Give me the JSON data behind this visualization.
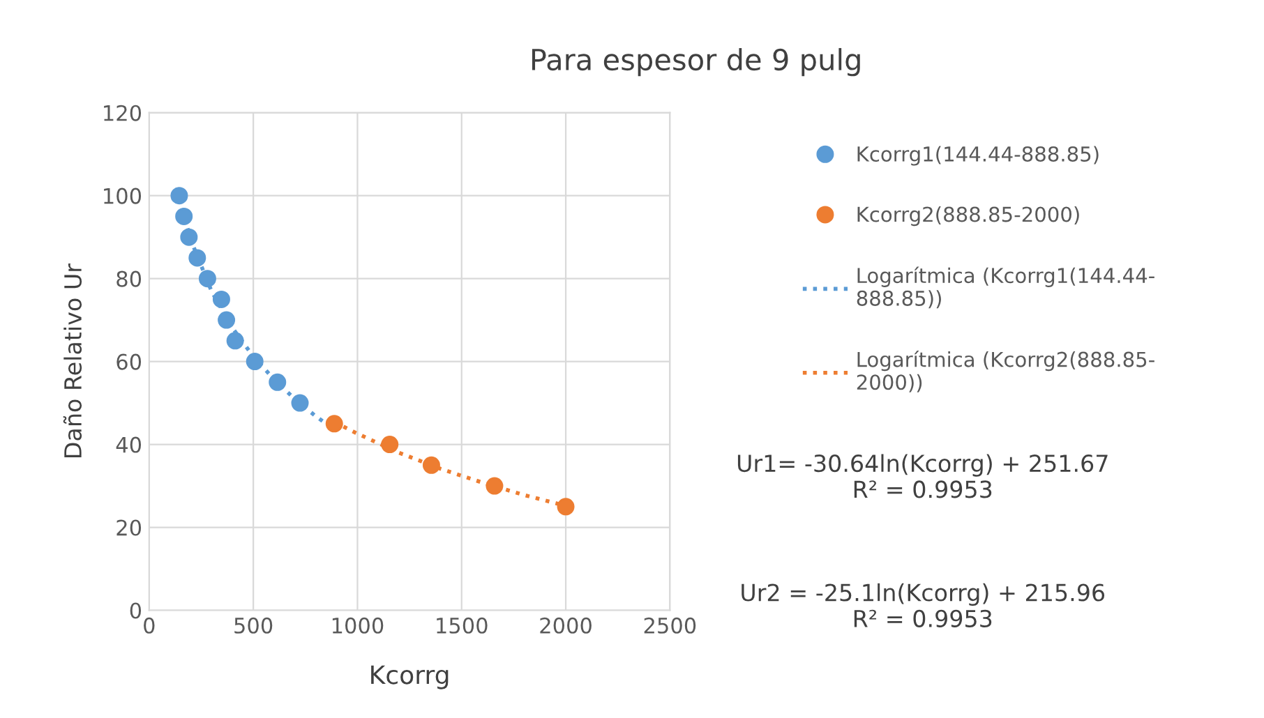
{
  "chart_data": {
    "type": "scatter",
    "title": "Para espesor de 9 pulg",
    "xlabel": "Kcorrg",
    "ylabel": "Daño Relativo Ur",
    "series": [
      {
        "name": "Kcorrg1(144.44-888.85)",
        "color": "#5b9bd5",
        "marker": "circle",
        "x": [
          144.44,
          167,
          191,
          231,
          280,
          347,
          371,
          413,
          507,
          616,
          724
        ],
        "values": [
          100,
          95,
          90,
          85,
          80,
          75,
          70,
          65,
          60,
          55,
          50
        ]
      },
      {
        "name": "Kcorrg2(888.85-2000)",
        "color": "#ed7d31",
        "marker": "circle",
        "x": [
          888.85,
          1155,
          1355,
          1658,
          2000
        ],
        "values": [
          45,
          40,
          35,
          30,
          25
        ]
      },
      {
        "name": "Logarítmica (Kcorrg1(144.44-888.85))",
        "color": "#5b9bd5",
        "type": "line",
        "line_style": "dotted",
        "marker": "none",
        "x": [
          144.44,
          200,
          300,
          400,
          500,
          600,
          700,
          800,
          888.85
        ],
        "values": [
          99.3,
          89.3,
          76.9,
          68.1,
          61.2,
          55.7,
          50.9,
          46.8,
          43.6
        ]
      },
      {
        "name": "Logarítmica (Kcorrg2(888.85-2000))",
        "color": "#ed7d31",
        "type": "line",
        "line_style": "dotted",
        "marker": "none",
        "x": [
          888.85,
          1000,
          1200,
          1400,
          1600,
          1800,
          2000
        ],
        "values": [
          45.4,
          42.6,
          38.0,
          34.1,
          30.8,
          27.8,
          25.2
        ]
      }
    ],
    "xlim": [
      0,
      2500
    ],
    "xticks": [
      0,
      500,
      1000,
      1500,
      2000,
      2500
    ],
    "ylim": [
      0,
      120
    ],
    "yticks": [
      0,
      20,
      40,
      60,
      80,
      100,
      120
    ],
    "grid": true,
    "legend": "right",
    "annotations": [
      "Ur1= -30.64ln(Kcorrg) + 251.67\nR² = 0.9953",
      "Ur2 = -25.1ln(Kcorrg) + 215.96\nR² = 0.9953"
    ]
  }
}
